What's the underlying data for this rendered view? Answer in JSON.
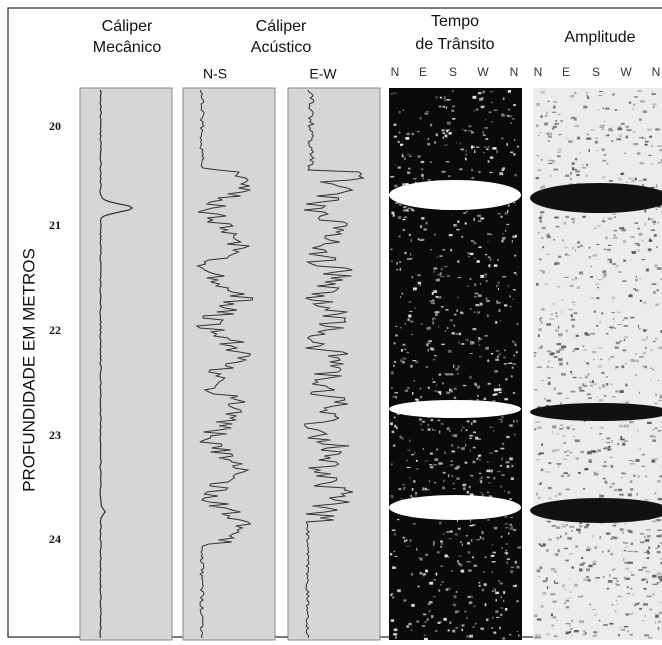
{
  "axis_label": "PROFUNDIDADE EM METROS",
  "depth_labels": [
    "20",
    "21",
    "22",
    "23",
    "24"
  ],
  "tracks": [
    {
      "title": [
        "Cáliper",
        "Mecânico"
      ]
    },
    {
      "title": [
        "Cáliper",
        "Acústico"
      ],
      "curves": [
        "N-S",
        "E-W"
      ]
    },
    {
      "title": [
        "Tempo",
        "de Trânsito"
      ],
      "directions": [
        "N",
        "E",
        "S",
        "W",
        "N"
      ]
    },
    {
      "title": [
        "Amplitude"
      ],
      "directions": [
        "N",
        "E",
        "S",
        "W",
        "N"
      ]
    }
  ]
}
